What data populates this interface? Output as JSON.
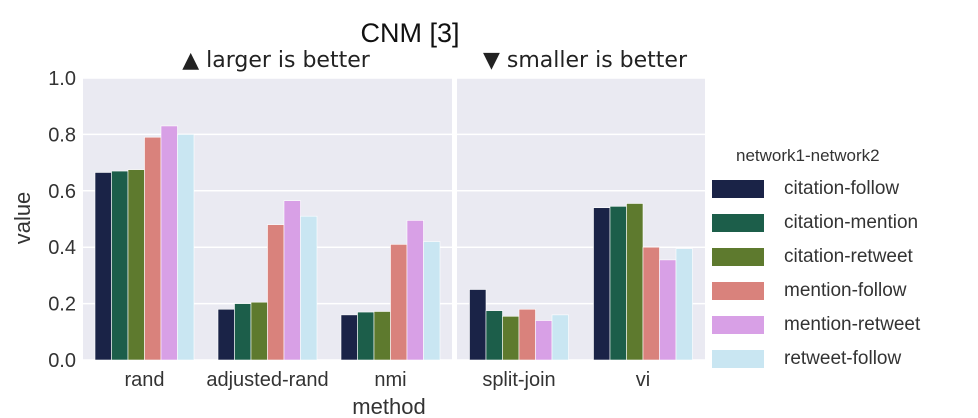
{
  "chart_data": {
    "type": "bar",
    "title": "CNM [3]",
    "panels": [
      {
        "label": "▲ larger is better",
        "categories": [
          "rand",
          "adjusted-rand",
          "nmi"
        ]
      },
      {
        "label": "▼ smaller is better",
        "categories": [
          "split-join",
          "vi"
        ]
      }
    ],
    "xlabel": "method",
    "ylabel": "value",
    "ylim": [
      0,
      1.0
    ],
    "yticks": [
      "0.0",
      "0.2",
      "0.4",
      "0.6",
      "0.8",
      "1.0"
    ],
    "grid": true,
    "legend_title": "network1-network2",
    "legend_placement": "right",
    "series": [
      {
        "name": "citation-follow",
        "color": "#1a2347",
        "values": [
          0.665,
          0.18,
          0.16,
          0.25,
          0.54
        ]
      },
      {
        "name": "citation-mention",
        "color": "#1c5e4a",
        "values": [
          0.67,
          0.2,
          0.17,
          0.175,
          0.545
        ]
      },
      {
        "name": "citation-retweet",
        "color": "#5e7a2e",
        "values": [
          0.675,
          0.205,
          0.172,
          0.155,
          0.555
        ]
      },
      {
        "name": "mention-follow",
        "color": "#d9827c",
        "values": [
          0.79,
          0.48,
          0.41,
          0.18,
          0.4
        ]
      },
      {
        "name": "mention-retweet",
        "color": "#d8a0e6",
        "values": [
          0.83,
          0.565,
          0.495,
          0.14,
          0.355
        ]
      },
      {
        "name": "retweet-follow",
        "color": "#c9e6f2",
        "values": [
          0.8,
          0.51,
          0.42,
          0.16,
          0.395
        ]
      }
    ]
  }
}
